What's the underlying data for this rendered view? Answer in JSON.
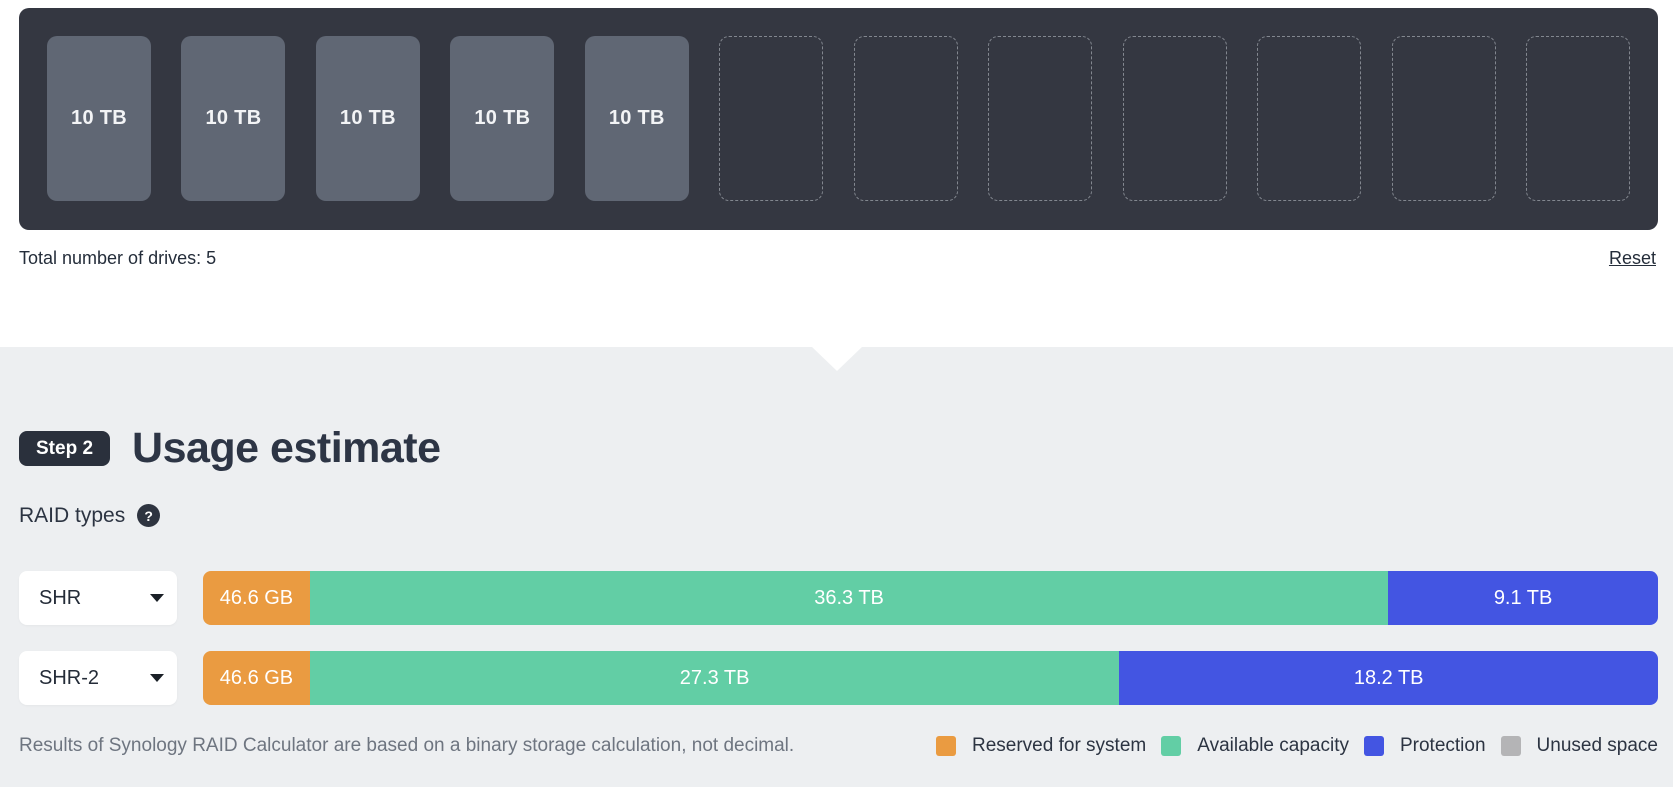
{
  "drive_bay": {
    "slots": [
      {
        "filled": true,
        "label": "10 TB"
      },
      {
        "filled": true,
        "label": "10 TB"
      },
      {
        "filled": true,
        "label": "10 TB"
      },
      {
        "filled": true,
        "label": "10 TB"
      },
      {
        "filled": true,
        "label": "10 TB"
      },
      {
        "filled": false
      },
      {
        "filled": false
      },
      {
        "filled": false
      },
      {
        "filled": false
      },
      {
        "filled": false
      },
      {
        "filled": false
      },
      {
        "filled": false
      }
    ],
    "total_label": "Total number of drives: 5",
    "reset_label": "Reset"
  },
  "step": {
    "badge": "Step 2",
    "title": "Usage estimate"
  },
  "raid": {
    "section_label": "RAID types",
    "help_icon": "?",
    "rows": [
      {
        "type": "SHR",
        "segments": [
          {
            "key": "reserved",
            "label": "46.6 GB",
            "flex": 107
          },
          {
            "key": "available",
            "label": "36.3 TB",
            "flex": 1079
          },
          {
            "key": "protection",
            "label": "9.1 TB",
            "flex": 270
          }
        ]
      },
      {
        "type": "SHR-2",
        "segments": [
          {
            "key": "reserved",
            "label": "46.6 GB",
            "flex": 107
          },
          {
            "key": "available",
            "label": "27.3 TB",
            "flex": 810
          },
          {
            "key": "protection",
            "label": "18.2 TB",
            "flex": 539
          }
        ]
      }
    ]
  },
  "footer": {
    "note": "Results of Synology RAID Calculator are based on a binary storage calculation, not decimal.",
    "legend": [
      {
        "key": "reserved",
        "label": "Reserved for system"
      },
      {
        "key": "available",
        "label": "Available capacity"
      },
      {
        "key": "protection",
        "label": "Protection"
      },
      {
        "key": "unused",
        "label": "Unused space"
      }
    ]
  },
  "colors": {
    "reserved": "#ea9b41",
    "available": "#62cea5",
    "protection": "#4355e2",
    "unused": "#b4b4b6",
    "panel_background": "#343741",
    "drive_fill": "#606774",
    "section_background": "#edeff1"
  }
}
